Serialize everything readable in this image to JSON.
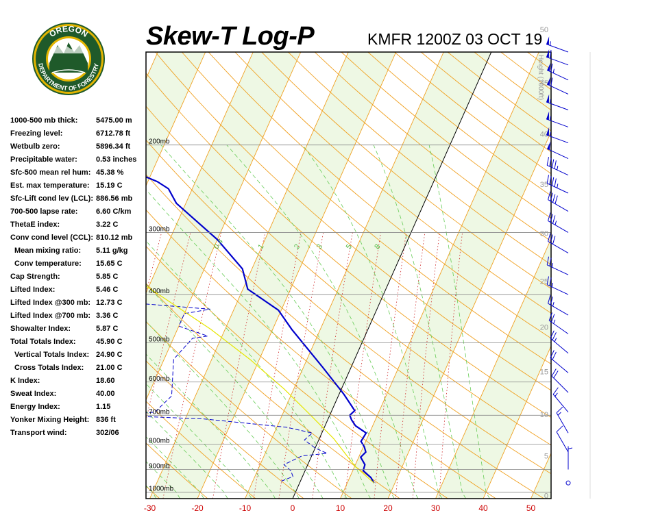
{
  "header": {
    "title": "Skew-T Log-P",
    "station": "KMFR 1200Z 03 OCT 19"
  },
  "logo": {
    "text_top": "OREGON",
    "text_bottom": "DEPARTMENT OF FORESTRY",
    "colors": {
      "ring": "#1f5a2a",
      "gold": "#e3b400"
    }
  },
  "indices": [
    {
      "label": "1000-500 mb thick:",
      "value": "5475.00 m"
    },
    {
      "label": "Freezing level:",
      "value": "6712.78 ft"
    },
    {
      "label": "Wetbulb zero:",
      "value": "5896.34 ft"
    },
    {
      "label": "Precipitable water:",
      "value": "0.53 inches"
    },
    {
      "label": "Sfc-500 mean rel hum:",
      "value": "45.38 %"
    },
    {
      "label": "Est. max temperature:",
      "value": "15.19 C"
    },
    {
      "label": "Sfc-Lift cond lev (LCL):",
      "value": "886.56 mb"
    },
    {
      "label": "700-500 lapse rate:",
      "value": "6.60 C/km"
    },
    {
      "label": "ThetaE index:",
      "value": "3.22 C"
    },
    {
      "label": "Conv cond level (CCL):",
      "value": "810.12 mb"
    },
    {
      "label": "Mean mixing ratio:",
      "value": "5.11 g/kg",
      "sub": true
    },
    {
      "label": "Conv temperature:",
      "value": "15.65 C",
      "sub": true
    },
    {
      "label": "Cap Strength:",
      "value": "5.85 C"
    },
    {
      "label": "Lifted Index:",
      "value": "5.46 C"
    },
    {
      "label": "Lifted Index @300 mb:",
      "value": "12.73 C"
    },
    {
      "label": "Lifted Index @700 mb:",
      "value": "3.36 C"
    },
    {
      "label": "Showalter Index:",
      "value": "5.87 C"
    },
    {
      "label": "Total Totals Index:",
      "value": "45.90 C"
    },
    {
      "label": "Vertical Totals Index:",
      "value": "24.90 C",
      "sub": true
    },
    {
      "label": "Cross Totals Index:",
      "value": "21.00 C",
      "sub": true
    },
    {
      "label": "K Index:",
      "value": "18.60"
    },
    {
      "label": "Sweat Index:",
      "value": "40.00"
    },
    {
      "label": "Energy Index:",
      "value": "1.15"
    },
    {
      "label": "Yonker Mixing Height:",
      "value": "836 ft"
    },
    {
      "label": "Transport wind:",
      "value": "302/06"
    }
  ],
  "chart_data": {
    "type": "line",
    "xlabel": "",
    "ylabel": "",
    "x_ticks": [
      -30,
      -20,
      -10,
      0,
      10,
      20,
      30,
      40,
      50
    ],
    "x_range": [
      -30,
      54
    ],
    "pressure_range": [
      1030,
      130
    ],
    "y_scale": "log",
    "pressure_levels": [
      {
        "p": 1000,
        "label": "1000mb"
      },
      {
        "p": 900,
        "label": "900mb"
      },
      {
        "p": 800,
        "label": "800mb"
      },
      {
        "p": 700,
        "label": "700mb"
      },
      {
        "p": 600,
        "label": "600mb"
      },
      {
        "p": 500,
        "label": "500mb"
      },
      {
        "p": 400,
        "label": "400mb"
      },
      {
        "p": 300,
        "label": "300mb"
      },
      {
        "p": 200,
        "label": "200mb"
      }
    ],
    "height_axis": {
      "title": "Height (1000ft)",
      "ticks": [
        {
          "label": "0",
          "p": 1015
        },
        {
          "label": "5",
          "p": 844
        },
        {
          "label": "10",
          "p": 697
        },
        {
          "label": "15",
          "p": 572
        },
        {
          "label": "20",
          "p": 465
        },
        {
          "label": "25",
          "p": 376
        },
        {
          "label": "30",
          "p": 301
        },
        {
          "label": "35",
          "p": 240
        },
        {
          "label": "40",
          "p": 190
        },
        {
          "label": "45",
          "p": 150
        },
        {
          "label": "50",
          "p": 117
        }
      ]
    },
    "mixing_ratio_labels": [
      "0.4",
      "1",
      "2",
      "3",
      "5",
      "8"
    ],
    "mixing_ratio_values": [
      0.4,
      1,
      2,
      3,
      5,
      8
    ],
    "series": [
      {
        "key": "temperature",
        "color": "#0000cc",
        "points": [
          [
            15.6,
            958
          ],
          [
            14.5,
            935
          ],
          [
            12.2,
            905
          ],
          [
            12,
            880
          ],
          [
            10.4,
            850
          ],
          [
            11,
            830
          ],
          [
            10.2,
            810
          ],
          [
            9,
            790
          ],
          [
            9.3,
            760
          ],
          [
            6.4,
            735
          ],
          [
            5,
            715
          ],
          [
            4.2,
            700
          ],
          [
            4.8,
            685
          ],
          [
            1,
            635
          ],
          [
            -6,
            560
          ],
          [
            -16,
            470
          ],
          [
            -20.6,
            430
          ],
          [
            -29,
            390
          ],
          [
            -32,
            355
          ],
          [
            -40,
            310
          ],
          [
            -52,
            262
          ],
          [
            -55,
            245
          ],
          [
            -58,
            237
          ],
          [
            -63,
            228
          ],
          [
            -64,
            212
          ],
          [
            -66,
            202
          ],
          [
            -75,
            186
          ],
          [
            -80,
            176
          ],
          [
            -82,
            165
          ],
          [
            -83.5,
            150
          ],
          [
            -87.5,
            142
          ],
          [
            -92,
            125
          ]
        ]
      },
      {
        "key": "dewpoint",
        "color": "#0000cc",
        "dashed": true,
        "points": [
          [
            -4,
            950
          ],
          [
            -2,
            930
          ],
          [
            -3,
            905
          ],
          [
            -5,
            880
          ],
          [
            -2,
            845
          ],
          [
            3,
            835
          ],
          [
            0,
            815
          ],
          [
            -3,
            785
          ],
          [
            -2,
            760
          ],
          [
            -8,
            740
          ],
          [
            -26,
            712
          ],
          [
            -46,
            700
          ],
          [
            -37,
            690
          ],
          [
            -35,
            640
          ],
          [
            -38,
            540
          ],
          [
            -36,
            490
          ],
          [
            -33,
            485
          ],
          [
            -40,
            463
          ],
          [
            -40,
            437
          ],
          [
            -35,
            428
          ],
          [
            -56,
            413
          ],
          [
            -55,
            395
          ],
          [
            -56,
            350
          ],
          [
            -64,
            297
          ],
          [
            -72,
            250
          ],
          [
            -71,
            238
          ],
          [
            -83,
            226
          ],
          [
            -82,
            200
          ],
          [
            -84,
            182
          ],
          [
            -94,
            160
          ],
          [
            -92,
            148
          ],
          [
            -98,
            130
          ],
          [
            -100,
            122
          ]
        ]
      },
      {
        "key": "parcel",
        "color": "#e6e600",
        "points": [
          [
            15.6,
            958
          ],
          [
            10.1,
            887
          ],
          [
            3,
            780
          ],
          [
            -4,
            700
          ],
          [
            -12,
            620
          ],
          [
            -22,
            540
          ],
          [
            -33,
            470
          ],
          [
            -45,
            410
          ],
          [
            -56,
            362
          ],
          [
            -68,
            320
          ],
          [
            -80,
            290
          ],
          [
            -90,
            268
          ],
          [
            -100,
            250
          ],
          [
            -105,
            238
          ]
        ]
      }
    ],
    "wind_barbs_right": [
      {
        "p": 130,
        "dir": 290,
        "spd": 55
      },
      {
        "p": 138,
        "dir": 290,
        "spd": 60
      },
      {
        "p": 148,
        "dir": 295,
        "spd": 65
      },
      {
        "p": 158,
        "dir": 295,
        "spd": 60
      },
      {
        "p": 170,
        "dir": 290,
        "spd": 55
      },
      {
        "p": 184,
        "dir": 290,
        "spd": 55
      },
      {
        "p": 198,
        "dir": 290,
        "spd": 55
      },
      {
        "p": 213,
        "dir": 295,
        "spd": 50
      },
      {
        "p": 230,
        "dir": 295,
        "spd": 45
      },
      {
        "p": 250,
        "dir": 295,
        "spd": 45
      },
      {
        "p": 272,
        "dir": 300,
        "spd": 40
      },
      {
        "p": 300,
        "dir": 300,
        "spd": 35
      },
      {
        "p": 330,
        "dir": 300,
        "spd": 30
      },
      {
        "p": 365,
        "dir": 295,
        "spd": 25
      },
      {
        "p": 400,
        "dir": 295,
        "spd": 25
      },
      {
        "p": 440,
        "dir": 300,
        "spd": 25
      },
      {
        "p": 480,
        "dir": 305,
        "spd": 25
      },
      {
        "p": 525,
        "dir": 310,
        "spd": 25
      },
      {
        "p": 575,
        "dir": 310,
        "spd": 20
      },
      {
        "p": 630,
        "dir": 315,
        "spd": 20
      },
      {
        "p": 690,
        "dir": 320,
        "spd": 15
      },
      {
        "p": 760,
        "dir": 330,
        "spd": 15
      },
      {
        "p": 830,
        "dir": 330,
        "spd": 10
      },
      {
        "p": 900,
        "dir": 0,
        "spd": 5
      },
      {
        "p": 958,
        "dir": 0,
        "spd": 0
      }
    ],
    "legend": "none"
  }
}
